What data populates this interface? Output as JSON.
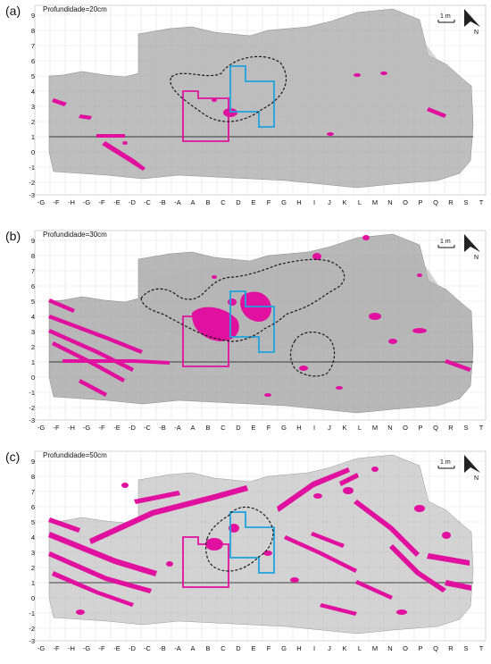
{
  "colors": {
    "anomaly": "#e0119e",
    "outline_pink": "#e0119e",
    "outline_blue": "#1ea3dd",
    "outline_dashed": "#1a1a1a",
    "grid": "#d0d0d0",
    "map_gray": "#9c9c9c"
  },
  "icons": {
    "north": "north-arrow-icon",
    "scale": "scale-bar-icon"
  },
  "scale_text": "1 m",
  "y_ticks": [
    "9",
    "8",
    "7",
    "6",
    "5",
    "4",
    "3",
    "2",
    "1",
    "0",
    "-1",
    "-2",
    "-3"
  ],
  "x_ticks": [
    "-G",
    "-F",
    "-H",
    "-G",
    "-F",
    "-E",
    "-D",
    "-C",
    "-B",
    "-A",
    "A",
    "B",
    "C",
    "D",
    "E",
    "F",
    "G",
    "H",
    "I",
    "J",
    "K",
    "L",
    "M",
    "N",
    "O",
    "P",
    "Q",
    "R",
    "S",
    "T"
  ],
  "panels": [
    {
      "letter": "(a)",
      "depth": "Profundidade=20cm",
      "anomaly_level": "low"
    },
    {
      "letter": "(b)",
      "depth": "Profundidade=30cm",
      "anomaly_level": "medium"
    },
    {
      "letter": "(c)",
      "depth": "Profundidade=50cm",
      "anomaly_level": "high"
    }
  ]
}
